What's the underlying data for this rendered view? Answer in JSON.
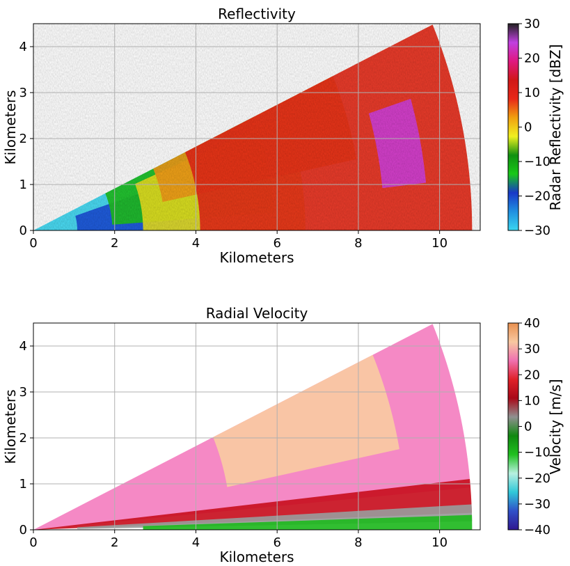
{
  "chart_data": [
    {
      "type": "heatmap",
      "title": "Reflectivity",
      "xlabel": "Kilometers",
      "ylabel": "Kilometers",
      "xlim": [
        0,
        11
      ],
      "ylim": [
        0,
        4.5
      ],
      "x_ticks": [
        0,
        2,
        4,
        6,
        8,
        10
      ],
      "y_ticks": [
        0,
        1,
        2,
        3,
        4
      ],
      "grid": true,
      "colorbar": {
        "label": "Radar Reflectivity [dBZ]",
        "min": -30,
        "max": 30,
        "ticks": [
          -30,
          -20,
          -10,
          0,
          10,
          20,
          30
        ],
        "tick_labels": [
          "−30",
          "−20",
          "−10",
          "0",
          "10",
          "20",
          "30"
        ],
        "colors": [
          "#3ad6f0",
          "#2090e0",
          "#1838c8",
          "#18c818",
          "#109010",
          "#f0f020",
          "#f0a010",
          "#e82818",
          "#d01818",
          "#e01880",
          "#c040e0",
          "#202020"
        ]
      },
      "sector": {
        "range_km": 10.8,
        "elevation_deg_max": 24.5
      },
      "regions": [
        {
          "name": "near-range low",
          "value_dbz": -25,
          "color": "#3ad6f0"
        },
        {
          "name": "low band",
          "value_dbz": -20,
          "color": "#1c50d8"
        },
        {
          "name": "green band",
          "value_dbz": -12,
          "color": "#20c020"
        },
        {
          "name": "yellow band",
          "value_dbz": 0,
          "color": "#e8e020"
        },
        {
          "name": "orange band",
          "value_dbz": 5,
          "color": "#f09a18"
        },
        {
          "name": "main echo",
          "value_dbz": 12,
          "color": "#e62a18"
        },
        {
          "name": "high core",
          "value_dbz": 22,
          "color": "#d040d8"
        }
      ]
    },
    {
      "type": "heatmap",
      "title": "Radial Velocity",
      "xlabel": "Kilometers",
      "ylabel": "Kilometers",
      "xlim": [
        0,
        11
      ],
      "ylim": [
        0,
        4.5
      ],
      "x_ticks": [
        0,
        2,
        4,
        6,
        8,
        10
      ],
      "y_ticks": [
        0,
        1,
        2,
        3,
        4
      ],
      "grid": true,
      "colorbar": {
        "label": "Velocity [m/s]",
        "min": -40,
        "max": 40,
        "ticks": [
          -40,
          -30,
          -20,
          -10,
          0,
          10,
          20,
          30,
          40
        ],
        "tick_labels": [
          "−40",
          "−30",
          "−20",
          "−10",
          "0",
          "10",
          "20",
          "30",
          "40"
        ],
        "colors": [
          "#301890",
          "#3050c8",
          "#30c8d8",
          "#b8f0e0",
          "#20c020",
          "#108810",
          "#909090",
          "#a80818",
          "#e02028",
          "#f070b0",
          "#f8c8a0",
          "#e89050"
        ]
      },
      "sector": {
        "range_km": 10.8,
        "elevation_deg_max": 24.5
      },
      "regions": [
        {
          "name": "upper flow",
          "value_ms": 20,
          "color": "#f47fc0"
        },
        {
          "name": "core",
          "value_ms": 28,
          "color": "#f8caa2"
        },
        {
          "name": "low red band",
          "value_ms": 10,
          "color": "#c81020"
        },
        {
          "name": "gray band",
          "value_ms": 0,
          "color": "#9a9a9a"
        },
        {
          "name": "green surface",
          "value_ms": -10,
          "color": "#20b820"
        }
      ]
    }
  ]
}
